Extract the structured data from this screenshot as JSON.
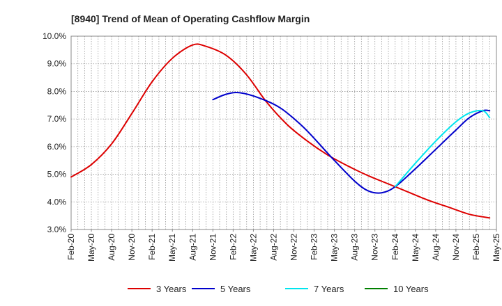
{
  "chart_data": {
    "type": "line",
    "title": "[8940]  Trend of Mean of Operating Cashflow Margin",
    "xlabel": "",
    "ylabel": "",
    "ylim": [
      3.0,
      10.0
    ],
    "y_ticks": [
      "3.0%",
      "4.0%",
      "5.0%",
      "6.0%",
      "7.0%",
      "8.0%",
      "9.0%",
      "10.0%"
    ],
    "y_tick_values": [
      3,
      4,
      5,
      6,
      7,
      8,
      9,
      10
    ],
    "x_ticks": [
      "Feb-20",
      "May-20",
      "Aug-20",
      "Nov-20",
      "Feb-21",
      "May-21",
      "Aug-21",
      "Nov-21",
      "Feb-22",
      "May-22",
      "Aug-22",
      "Nov-22",
      "Feb-23",
      "May-23",
      "Aug-23",
      "Nov-23",
      "Feb-24",
      "May-24",
      "Aug-24",
      "Nov-24",
      "Feb-25",
      "May-25"
    ],
    "grid": true,
    "legend_position": "bottom",
    "series": [
      {
        "name": "3 Years",
        "color": "#dd0000",
        "points": [
          [
            0,
            4.9
          ],
          [
            3,
            5.35
          ],
          [
            6,
            6.1
          ],
          [
            9,
            7.2
          ],
          [
            12,
            8.35
          ],
          [
            15,
            9.2
          ],
          [
            18,
            9.68
          ],
          [
            20,
            9.63
          ],
          [
            23,
            9.3
          ],
          [
            26,
            8.6
          ],
          [
            29,
            7.6
          ],
          [
            32,
            6.8
          ],
          [
            35,
            6.2
          ],
          [
            38,
            5.7
          ],
          [
            41,
            5.3
          ],
          [
            44,
            4.95
          ],
          [
            47,
            4.65
          ],
          [
            50,
            4.35
          ],
          [
            53,
            4.05
          ],
          [
            56,
            3.8
          ],
          [
            59,
            3.55
          ],
          [
            62,
            3.42
          ]
        ]
      },
      {
        "name": "5 Years",
        "color": "#0000cc",
        "points": [
          [
            21,
            7.7
          ],
          [
            23,
            7.9
          ],
          [
            25,
            7.95
          ],
          [
            28,
            7.75
          ],
          [
            31,
            7.4
          ],
          [
            34,
            6.8
          ],
          [
            36,
            6.3
          ],
          [
            39,
            5.5
          ],
          [
            42,
            4.75
          ],
          [
            44,
            4.4
          ],
          [
            46,
            4.33
          ],
          [
            48,
            4.55
          ],
          [
            51,
            5.2
          ],
          [
            54,
            5.9
          ],
          [
            57,
            6.6
          ],
          [
            59,
            7.05
          ],
          [
            61,
            7.3
          ],
          [
            62,
            7.3
          ]
        ]
      },
      {
        "name": "7 Years",
        "color": "#00e5ee",
        "points": [
          [
            48,
            4.55
          ],
          [
            51,
            5.4
          ],
          [
            54,
            6.2
          ],
          [
            57,
            6.9
          ],
          [
            59,
            7.22
          ],
          [
            61,
            7.3
          ],
          [
            62,
            7.05
          ]
        ]
      },
      {
        "name": "10 Years",
        "color": "#008000",
        "points": []
      }
    ]
  }
}
